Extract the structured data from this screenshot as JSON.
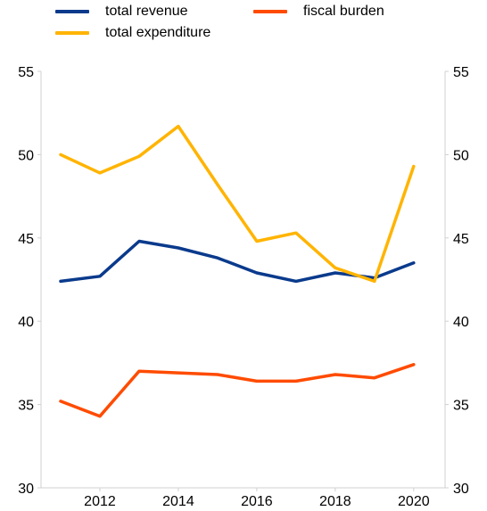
{
  "legend": {
    "items": [
      {
        "label": "total revenue",
        "color": "#0a3a8c"
      },
      {
        "label": "fiscal burden",
        "color": "#ff4b00"
      },
      {
        "label": "total expenditure",
        "color": "#ffb400"
      }
    ]
  },
  "chart_data": {
    "type": "line",
    "x": [
      2011,
      2012,
      2013,
      2014,
      2015,
      2016,
      2017,
      2018,
      2019,
      2020
    ],
    "x_tick_labels": [
      "2012",
      "2014",
      "2016",
      "2018",
      "2020"
    ],
    "x_ticks": [
      2012,
      2014,
      2016,
      2018,
      2020
    ],
    "y_ticks": [
      30,
      35,
      40,
      45,
      50,
      55
    ],
    "ylim": [
      30,
      55
    ],
    "secondary_y_axis": true,
    "grid": false,
    "legend_position": "top",
    "series": [
      {
        "name": "total revenue",
        "color": "#0a3a8c",
        "values": [
          42.4,
          42.7,
          44.8,
          44.4,
          43.8,
          42.9,
          42.4,
          42.9,
          42.6,
          43.5
        ]
      },
      {
        "name": "total expenditure",
        "color": "#ffb400",
        "values": [
          50.0,
          48.9,
          49.9,
          51.7,
          48.2,
          44.8,
          45.3,
          43.2,
          42.4,
          49.3
        ]
      },
      {
        "name": "fiscal burden",
        "color": "#ff4b00",
        "values": [
          35.2,
          34.3,
          37.0,
          36.9,
          36.8,
          36.4,
          36.4,
          36.8,
          36.6,
          37.4
        ]
      }
    ]
  }
}
